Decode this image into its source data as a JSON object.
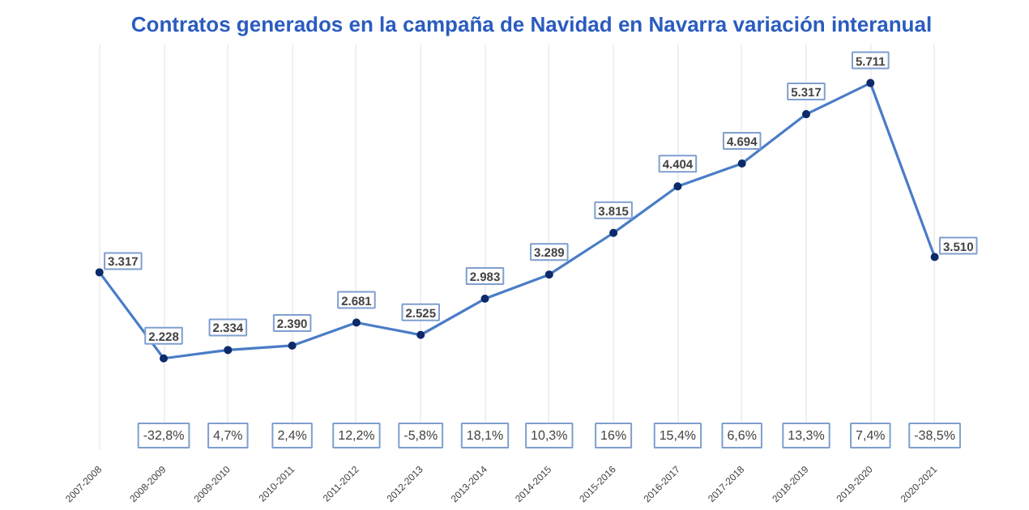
{
  "chart_data": {
    "type": "line",
    "title": "Contratos generados en la campaña de Navidad en Navarra variación interanual",
    "categories": [
      "2007-2008",
      "2008-2009",
      "2009-2010",
      "2010-2011",
      "2011-2012",
      "2012-2013",
      "2013-2014",
      "2014-2015",
      "2015-2016",
      "2016-2017",
      "2017-2018",
      "2018-2019",
      "2019-2020",
      "2020-2021"
    ],
    "series": [
      {
        "color": "#4a7cc7",
        "values": [
          3317,
          2228,
          2334,
          2390,
          2681,
          2525,
          2983,
          3289,
          3815,
          4404,
          4694,
          5317,
          5711,
          3510
        ],
        "value_labels": [
          "3.317",
          "2.228",
          "2.334",
          "2.390",
          "2.681",
          "2.525",
          "2.983",
          "3.289",
          "3.815",
          "4.404",
          "4.694",
          "5.317",
          "5.711",
          "3.510"
        ]
      }
    ],
    "marker": "circle",
    "grid": "x",
    "annotations": [
      "-32,8%",
      "4,7%",
      "2,4%",
      "12,2%",
      "-5,8%",
      "18,1%",
      "10,3%",
      "16%",
      "15,4%",
      "6,6%",
      "13,3%",
      "7,4%",
      "-38,5%"
    ]
  }
}
